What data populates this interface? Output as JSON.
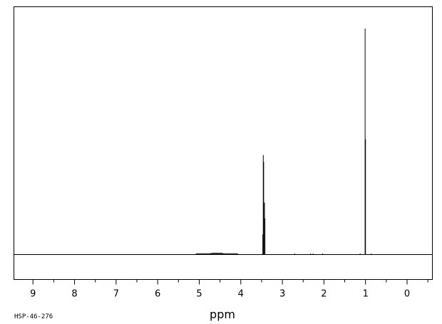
{
  "sample_id": "HSP-46-276",
  "chart_data": {
    "type": "line",
    "title": "",
    "xlabel": "ppm",
    "ylabel": "",
    "x_reversed": true,
    "xlim": [
      9.45,
      -0.6
    ],
    "ylim": [
      0,
      1
    ],
    "grid": false,
    "x_ticks": [
      9,
      8,
      7,
      6,
      5,
      4,
      3,
      2,
      1,
      0
    ],
    "x_tick_labels": [
      "9",
      "8",
      "7",
      "6",
      "5",
      "4",
      "3",
      "2",
      "1",
      "0"
    ],
    "series": [
      {
        "peaks": [
          {
            "ppm": 1.01,
            "intensity": 1.0
          },
          {
            "ppm": 1.0,
            "intensity": 0.51
          },
          {
            "ppm": 3.46,
            "intensity": 0.44
          },
          {
            "ppm": 3.45,
            "intensity": 0.41
          },
          {
            "ppm": 3.43,
            "intensity": 0.23
          },
          {
            "ppm": 3.47,
            "intensity": 0.09
          },
          {
            "ppm": 3.42,
            "intensity": 0.16
          },
          {
            "ppm": 0.86,
            "intensity": 0.005
          },
          {
            "ppm": 2.32,
            "intensity": 0.003
          },
          {
            "ppm": 2.26,
            "intensity": 0.003
          },
          {
            "ppm": 2.7,
            "intensity": 0.003
          },
          {
            "ppm": 2.03,
            "intensity": 0.003
          },
          {
            "ppm": 1.13,
            "intensity": 0.004
          }
        ],
        "humps": [
          {
            "from": 5.1,
            "to": 4.05,
            "intensity": 0.004
          },
          {
            "from": 4.75,
            "to": 4.4,
            "intensity": 0.006
          }
        ]
      }
    ]
  }
}
